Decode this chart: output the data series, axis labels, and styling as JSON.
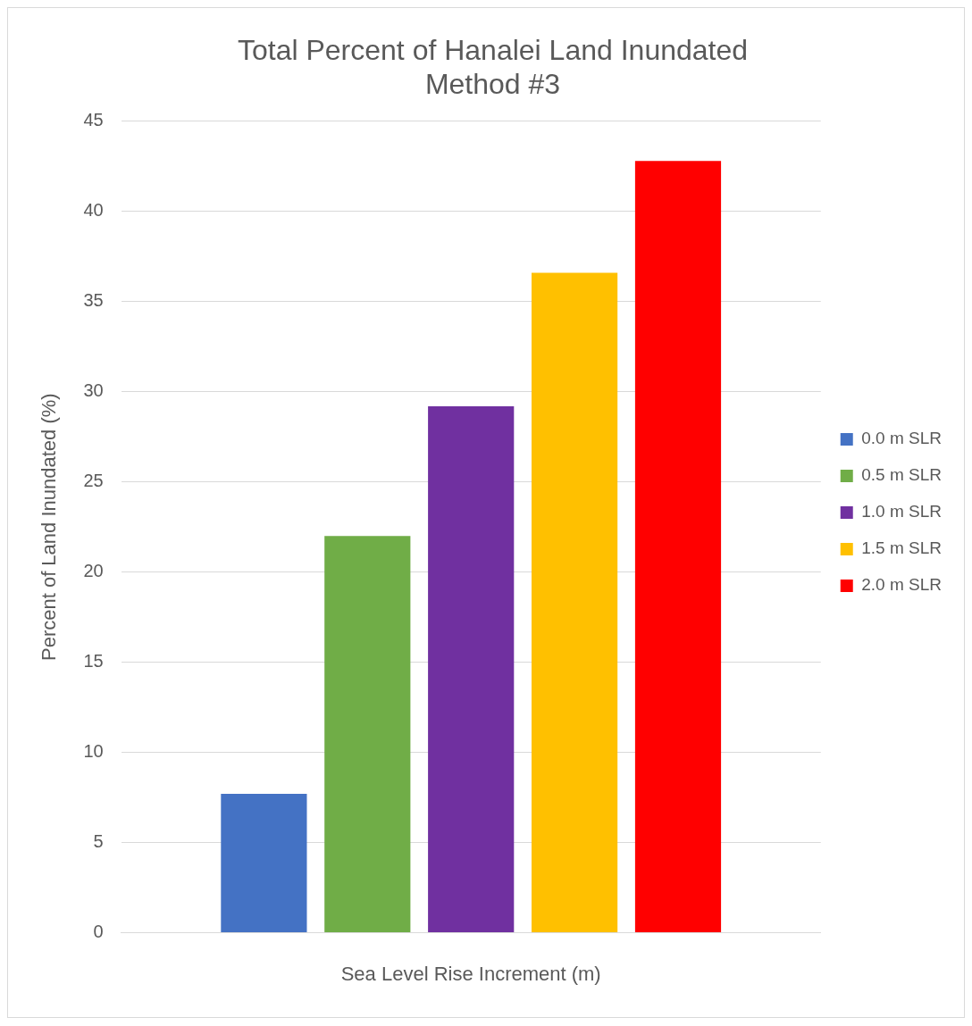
{
  "chart_data": {
    "type": "bar",
    "title": [
      "Total Percent of Hanalei Land Inundated",
      "Method #3"
    ],
    "xlabel": "Sea Level Rise Increment (m)",
    "ylabel": "Percent of Land Inundated (%)",
    "categories": [
      null
    ],
    "series": [
      {
        "name": "0.0 m SLR",
        "color": "#4472c4",
        "values": [
          7.7
        ]
      },
      {
        "name": "0.5 m SLR",
        "color": "#70ad47",
        "values": [
          22.0
        ]
      },
      {
        "name": "1.0 m SLR",
        "color": "#7030a0",
        "values": [
          29.2
        ]
      },
      {
        "name": "1.5 m SLR",
        "color": "#ffc000",
        "values": [
          36.6
        ]
      },
      {
        "name": "2.0 m SLR",
        "color": "#ff0000",
        "values": [
          42.8
        ]
      }
    ],
    "ylim": [
      0,
      45
    ],
    "yticks": [
      0,
      5,
      10,
      15,
      20,
      25,
      30,
      35,
      40,
      45
    ],
    "grid": "y",
    "legend": "right"
  }
}
